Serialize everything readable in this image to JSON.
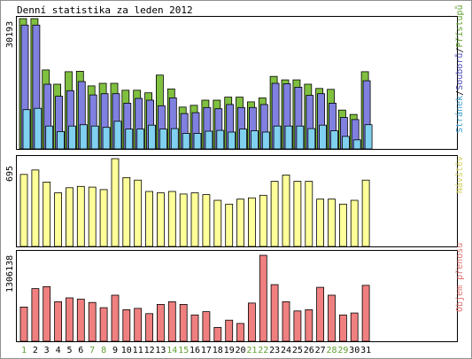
{
  "title": "Denní statistika za leden 2012",
  "colors": {
    "hits": "#80c040",
    "files": "#8080e0",
    "pages": "#80d0f0",
    "visits": "#ffff99",
    "kbytes": "#f08080",
    "weekend_label": "#60a030",
    "weekday_label": "#000000",
    "hits_text": "#60a030",
    "files_text": "#5050c0",
    "pages_text": "#40a0d0",
    "visits_text": "#d0d060",
    "kbytes_text": "#e07070"
  },
  "chart_data": [
    {
      "type": "bar",
      "panel": "top",
      "categories": [
        "1",
        "2",
        "3",
        "4",
        "5",
        "6",
        "7",
        "8",
        "9",
        "10",
        "11",
        "12",
        "13",
        "14",
        "15",
        "16",
        "17",
        "18",
        "19",
        "20",
        "21",
        "22",
        "23",
        "24",
        "25",
        "26",
        "27",
        "28",
        "29",
        "30",
        "31"
      ],
      "ymax_label": "30193",
      "ylim": [
        0,
        30193
      ],
      "legend": {
        "hits": "Přístupů",
        "files": "Souborů",
        "pages": "Stránek",
        "sep": "/"
      },
      "series": [
        {
          "name": "Přístupů",
          "key": "hits",
          "values": [
            30193,
            30193,
            18300,
            15000,
            17900,
            18000,
            14600,
            15200,
            15200,
            13600,
            13600,
            13000,
            17100,
            13900,
            9700,
            10100,
            11300,
            11300,
            12000,
            12000,
            10900,
            11800,
            16800,
            16000,
            16000,
            15000,
            14000,
            13800,
            9000,
            8000,
            17900
          ]
        },
        {
          "name": "Souborů",
          "key": "files",
          "values": [
            28700,
            28700,
            15000,
            12200,
            13500,
            15600,
            12500,
            12800,
            12800,
            10600,
            11700,
            11300,
            10000,
            11800,
            8200,
            8400,
            9600,
            9300,
            10300,
            9600,
            9600,
            10300,
            15200,
            15100,
            14300,
            12400,
            12800,
            10600,
            7300,
            6800,
            15800
          ]
        },
        {
          "name": "Stránek",
          "key": "pages",
          "values": [
            9100,
            9400,
            5300,
            4000,
            5300,
            5600,
            5300,
            5000,
            6400,
            4600,
            4600,
            5500,
            4600,
            4700,
            3600,
            3600,
            4100,
            4300,
            3900,
            4600,
            4200,
            3900,
            5300,
            5300,
            5300,
            4700,
            5500,
            4200,
            2900,
            2100,
            5600
          ]
        }
      ]
    },
    {
      "type": "bar",
      "panel": "middle",
      "categories": [
        "1",
        "2",
        "3",
        "4",
        "5",
        "6",
        "7",
        "8",
        "9",
        "10",
        "11",
        "12",
        "13",
        "14",
        "15",
        "16",
        "17",
        "18",
        "19",
        "20",
        "21",
        "22",
        "23",
        "24",
        "25",
        "26",
        "27",
        "28",
        "29",
        "30",
        "31"
      ],
      "ymax_label": "695",
      "ylim": [
        0,
        695
      ],
      "legend": {
        "visits": "Návštěv"
      },
      "series": [
        {
          "name": "Návštěv",
          "key": "visits",
          "values": [
            570,
            605,
            510,
            425,
            465,
            475,
            470,
            450,
            695,
            545,
            525,
            435,
            425,
            435,
            415,
            425,
            410,
            365,
            335,
            375,
            385,
            405,
            515,
            565,
            515,
            515,
            375,
            375,
            335,
            365,
            525
          ]
        }
      ]
    },
    {
      "type": "bar",
      "panel": "bottom",
      "categories": [
        "1",
        "2",
        "3",
        "4",
        "5",
        "6",
        "7",
        "8",
        "9",
        "10",
        "11",
        "12",
        "13",
        "14",
        "15",
        "16",
        "17",
        "18",
        "19",
        "20",
        "21",
        "22",
        "23",
        "24",
        "25",
        "26",
        "27",
        "28",
        "29",
        "30",
        "31"
      ],
      "ymax_label": "1306138",
      "ylim": [
        0,
        1306138
      ],
      "legend": {
        "kbytes": "Objem přenosu"
      },
      "series": [
        {
          "name": "Objem přenosu",
          "key": "kbytes",
          "values": [
            520000,
            800000,
            830000,
            600000,
            660000,
            640000,
            590000,
            510000,
            700000,
            480000,
            500000,
            420000,
            560000,
            600000,
            560000,
            400000,
            450000,
            210000,
            320000,
            270000,
            580000,
            1306138,
            860000,
            600000,
            460000,
            480000,
            820000,
            700000,
            400000,
            430000,
            850000
          ]
        }
      ]
    }
  ],
  "weekends": [
    "1",
    "7",
    "8",
    "14",
    "15",
    "21",
    "22",
    "28",
    "29"
  ]
}
